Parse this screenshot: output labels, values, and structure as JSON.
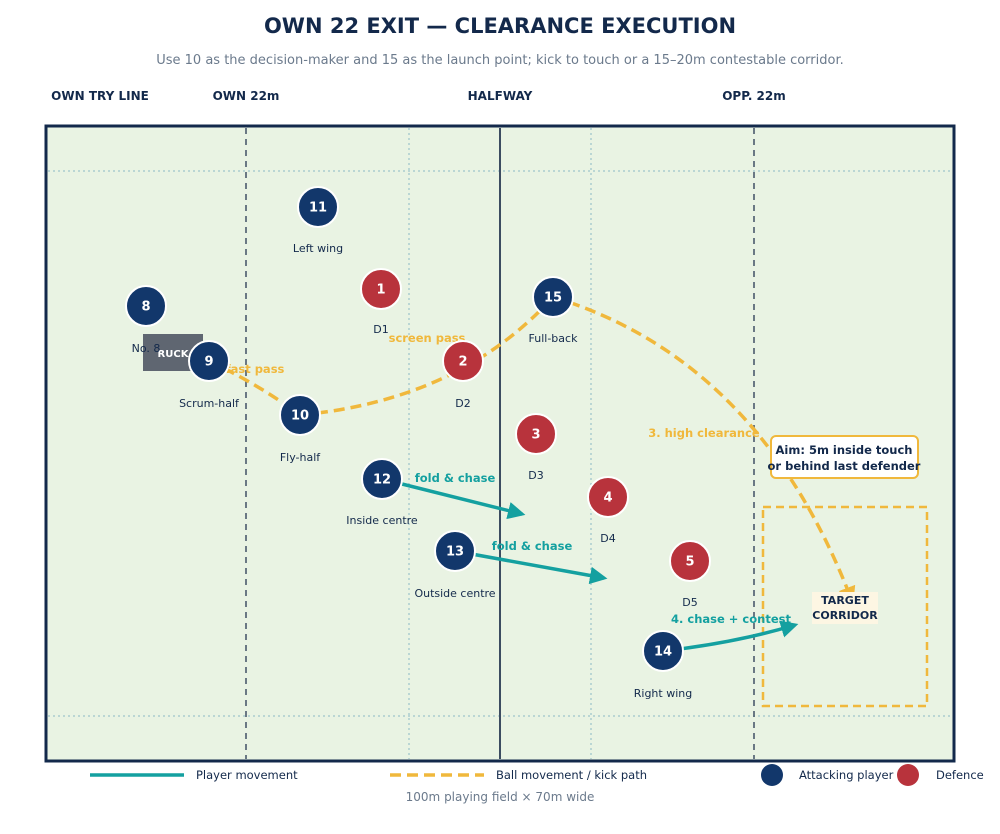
{
  "title": "OWN 22 EXIT — CLEARANCE EXECUTION",
  "subtitle": "Use 10 as the decision-maker and 15 as the launch point; kick to touch or a 15–20m contestable corridor.",
  "zone_labels": {
    "own_try_line": "OWN TRY LINE",
    "own_22": "OWN 22m",
    "halfway": "HALFWAY",
    "opp_22": "OPP. 22m"
  },
  "ruck_label": "RUCK",
  "attackers": [
    {
      "id": "att-8",
      "number": "8",
      "role": "No. 8"
    },
    {
      "id": "att-9",
      "number": "9",
      "role": "Scrum-half"
    },
    {
      "id": "att-10",
      "number": "10",
      "role": "Fly-half"
    },
    {
      "id": "att-11",
      "number": "11",
      "role": "Left wing"
    },
    {
      "id": "att-12",
      "number": "12",
      "role": "Inside centre"
    },
    {
      "id": "att-13",
      "number": "13",
      "role": "Outside centre"
    },
    {
      "id": "att-14",
      "number": "14",
      "role": "Right wing"
    },
    {
      "id": "att-15",
      "number": "15",
      "role": "Full-back"
    }
  ],
  "defenders": [
    {
      "id": "def-1",
      "number": "1",
      "role": "D1"
    },
    {
      "id": "def-2",
      "number": "2",
      "role": "D2"
    },
    {
      "id": "def-3",
      "number": "3",
      "role": "D3"
    },
    {
      "id": "def-4",
      "number": "4",
      "role": "D4"
    },
    {
      "id": "def-5",
      "number": "5",
      "role": "D5"
    }
  ],
  "annotations": {
    "fast_pass": "fast pass",
    "screen_pass": "screen pass",
    "high_clearance": "3. high clearance",
    "fold_chase": "fold & chase",
    "chase_contest": "4. chase + contest"
  },
  "callout": {
    "line1": "Aim: 5m inside touch",
    "line2": "or behind last defender"
  },
  "target": {
    "line1": "TARGET",
    "line2": "CORRIDOR"
  },
  "legend": {
    "player_movement": "Player movement",
    "ball_movement": "Ball movement / kick path",
    "attacking": "Attacking player",
    "defence": "Defence"
  },
  "footer": "100m playing field × 70m wide",
  "colors": {
    "navy": "#12376b",
    "red": "#b8333c",
    "teal": "#14a0a0",
    "gold": "#f0b83c",
    "field": "#e9f3e3",
    "ruck": "#5f6671"
  }
}
